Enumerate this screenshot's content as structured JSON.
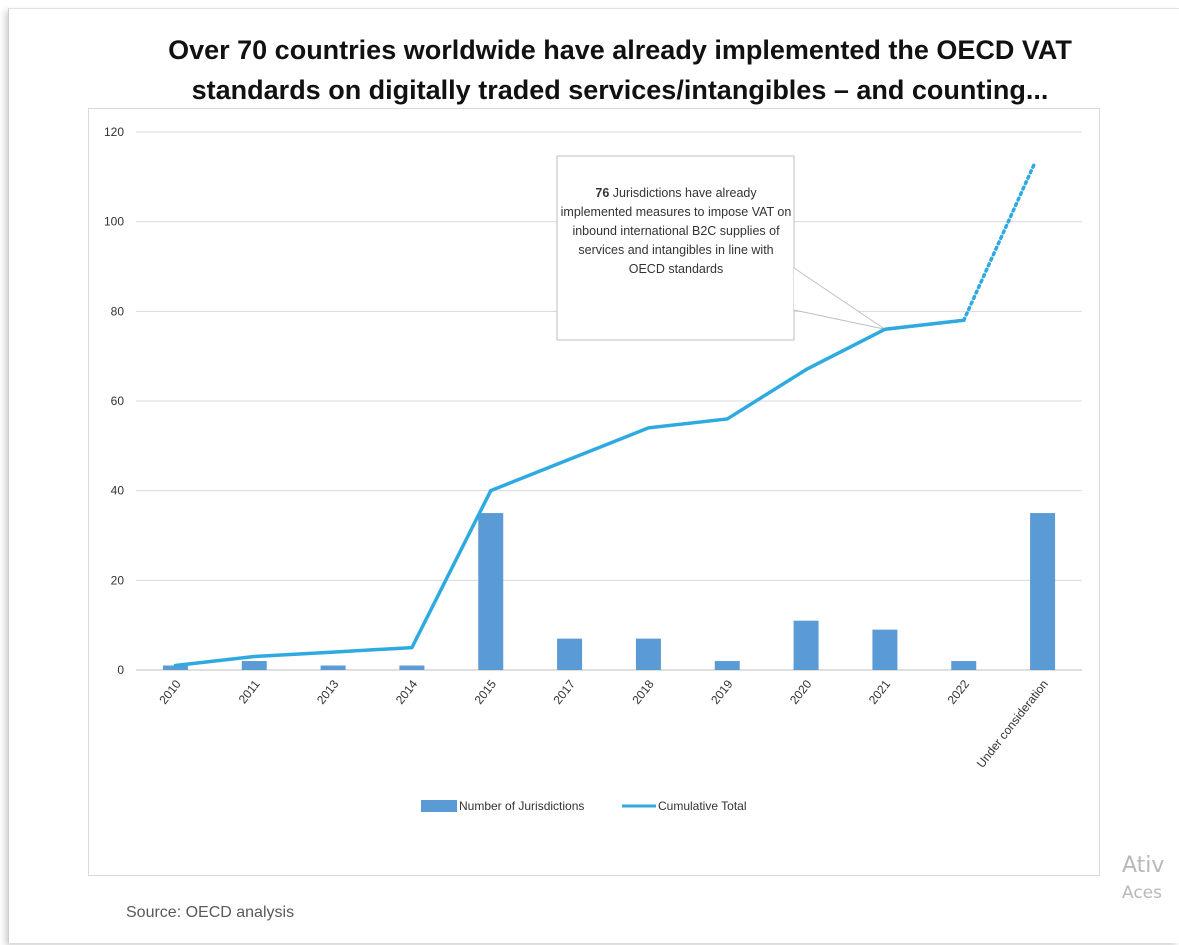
{
  "title": "Over 70 countries worldwide have already implemented the OECD VAT\nstandards on digitally traded services/intangibles – and counting...",
  "source": "Source: OECD analysis",
  "watermark": {
    "line1": "Ativ",
    "line2": "Aces"
  },
  "colors": {
    "bar": "#5B9BD5",
    "line": "#2EAAE1",
    "grid": "#d9d9d9"
  },
  "annotation": {
    "lead": "76",
    "text": "Jurisdictions have already implemented measures to impose VAT on inbound international B2C supplies of services and intangibles in line with OECD standards"
  },
  "chart_data": {
    "type": "bar",
    "categories": [
      "2010",
      "2011",
      "2013",
      "2014",
      "2015",
      "2017",
      "2018",
      "2019",
      "2020",
      "2021",
      "2022",
      "Under consideration"
    ],
    "series": [
      {
        "name": "Number of Jurisdictions",
        "type": "bar",
        "values": [
          1,
          2,
          1,
          1,
          35,
          7,
          7,
          2,
          11,
          9,
          2,
          35
        ]
      },
      {
        "name": "Cumulative Total",
        "type": "line",
        "values": [
          1,
          3,
          4,
          5,
          40,
          47,
          54,
          56,
          67,
          76,
          78,
          null
        ],
        "projection": [
          78,
          113
        ]
      }
    ],
    "ylim": [
      0,
      120
    ],
    "yticks": [
      0,
      20,
      40,
      60,
      80,
      100,
      120
    ],
    "grid": true,
    "legend": "bottom"
  }
}
